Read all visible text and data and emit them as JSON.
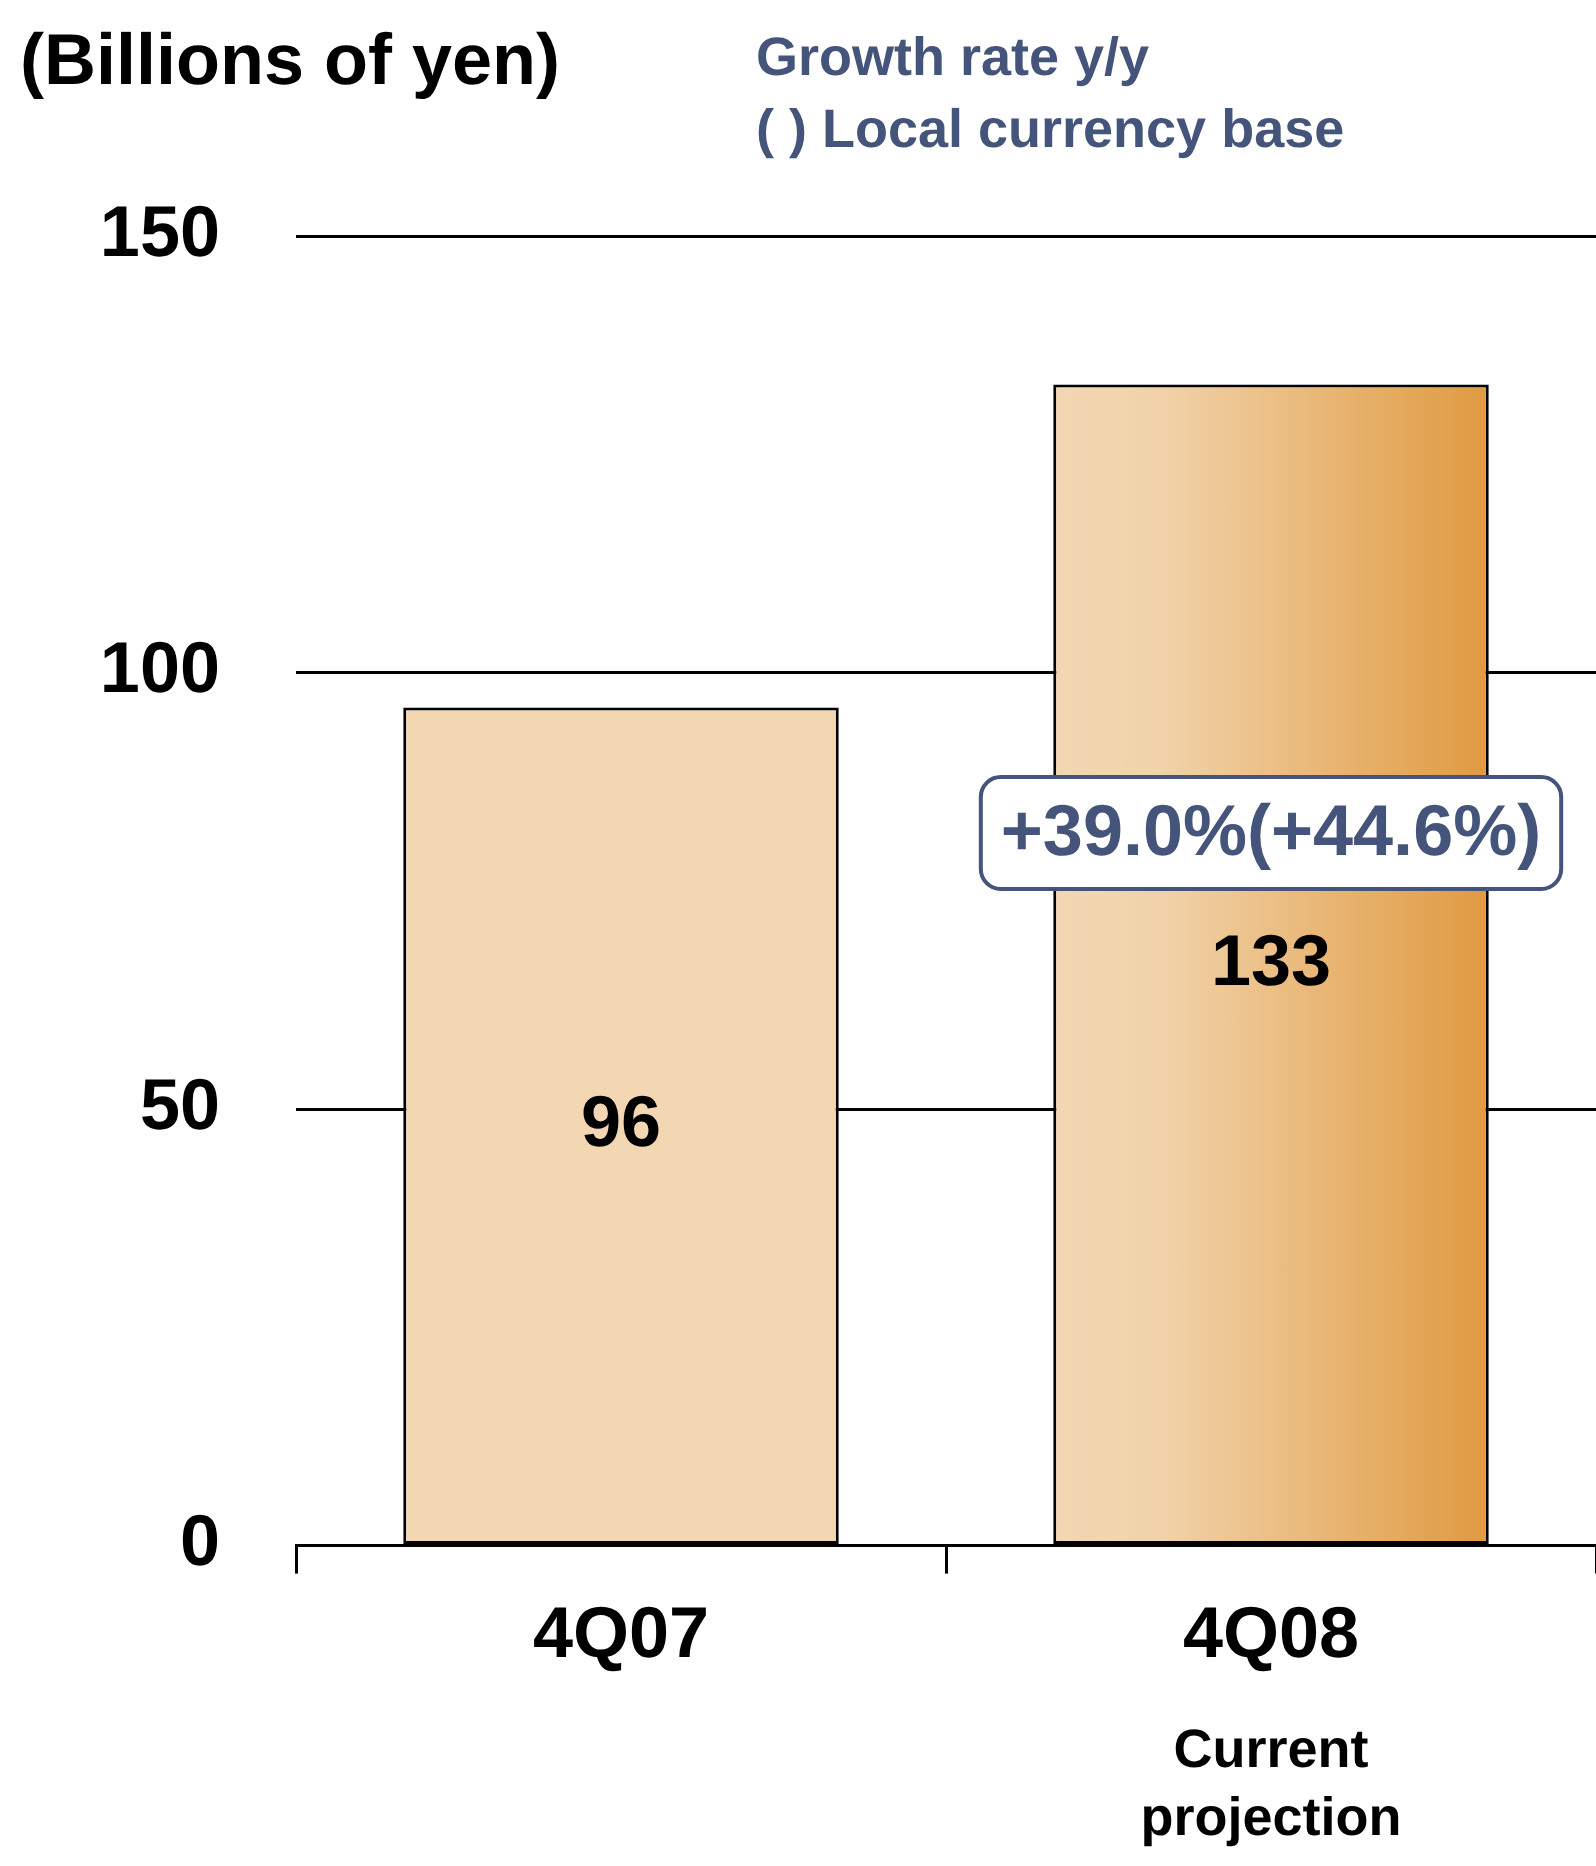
{
  "chart_data": {
    "type": "bar",
    "ylabel": "(Billions of yen)",
    "categories": [
      "4Q07",
      "4Q08"
    ],
    "values": [
      96,
      133
    ],
    "color": "#e09a40",
    "ylim": [
      0,
      150
    ],
    "yticks": [
      0,
      50,
      100,
      150
    ],
    "grid": "y",
    "data_labels": true,
    "legend": false,
    "annotations": [
      "Growth rate y/y",
      "( ) Local currency base",
      "+39.0%(+44.6%)",
      "Current projection"
    ]
  }
}
